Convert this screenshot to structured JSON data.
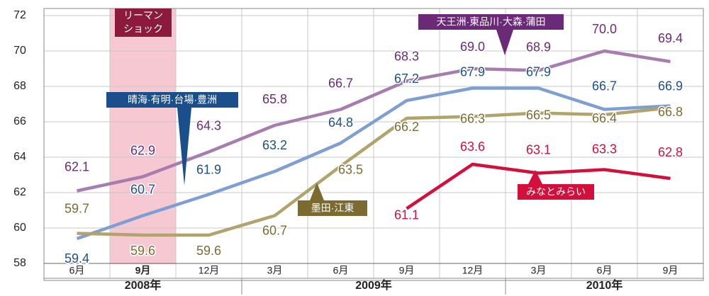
{
  "chart_data": {
    "type": "line",
    "categories": [
      "6月",
      "9月",
      "12月",
      "3月",
      "6月",
      "9月",
      "12月",
      "3月",
      "6月",
      "9月"
    ],
    "years": [
      "2008年",
      "2009年",
      "2010年"
    ],
    "annotation": [
      "リーマン",
      "ショック"
    ],
    "series": [
      {
        "name": "天王洲·東品川·大森·蒲田",
        "color": "#a77cae",
        "label_color": "#6b2a78",
        "values": [
          62.1,
          62.9,
          64.3,
          65.8,
          66.7,
          68.3,
          69.0,
          68.9,
          70.0,
          69.4
        ],
        "value_labels": [
          "62.1",
          "62.9",
          "64.3",
          "65.8",
          "66.7",
          "68.3",
          "69.0",
          "68.9",
          "70.0",
          "69.4"
        ]
      },
      {
        "name": "晴海·有明·台場·豊洲",
        "color": "#7f9fd2",
        "label_color": "#1b4f8c",
        "values": [
          59.4,
          60.7,
          61.9,
          63.2,
          64.8,
          67.2,
          67.9,
          67.9,
          66.7,
          66.9
        ],
        "value_labels": [
          "59.4",
          "60.7",
          "61.9",
          "63.2",
          "64.8",
          "67.2",
          "67.9",
          "67.9",
          "66.7",
          "66.9"
        ]
      },
      {
        "name": "墨田·江東",
        "color": "#b0a36c",
        "label_color": "#7b6b30",
        "values": [
          59.7,
          59.6,
          59.6,
          60.7,
          63.5,
          66.2,
          66.3,
          66.5,
          66.4,
          66.8
        ],
        "value_labels": [
          "59.7",
          "59.6",
          "59.6",
          "60.7",
          "63.5",
          "66.2",
          "66.3",
          "66.5",
          "66.4",
          "66.8"
        ]
      },
      {
        "name": "みなとみらい",
        "color": "#d3103c",
        "label_color": "#d3103c",
        "values": [
          null,
          null,
          null,
          null,
          null,
          61.1,
          63.6,
          63.1,
          63.3,
          62.8
        ],
        "value_labels": [
          null,
          null,
          null,
          null,
          null,
          "61.1",
          "63.6",
          "63.1",
          "63.3",
          "62.8"
        ]
      }
    ],
    "ylim": [
      58,
      72
    ],
    "yticks": [
      58,
      60,
      62,
      64,
      66,
      68,
      70,
      72
    ],
    "grid": true
  }
}
